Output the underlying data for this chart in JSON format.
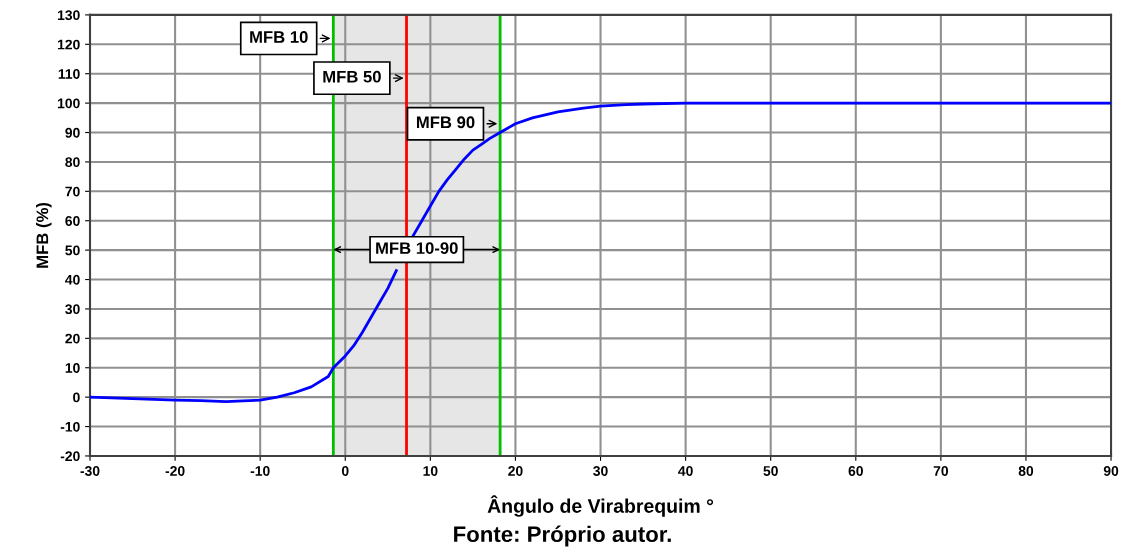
{
  "chart_data": {
    "type": "line",
    "xlabel": "Ângulo de Virabrequim °",
    "ylabel": "MFB (%)",
    "x": [
      -30,
      -25,
      -20,
      -17,
      -14,
      -12,
      -10,
      -8,
      -6,
      -4,
      -2,
      -1.4,
      0,
      1,
      2,
      3,
      4,
      5,
      6,
      7.2,
      8,
      9,
      10,
      11,
      12,
      13,
      14,
      15,
      16,
      17,
      18.2,
      20,
      22,
      25,
      28,
      30,
      33,
      35,
      40,
      50,
      60,
      70,
      80,
      90
    ],
    "series": [
      {
        "color": "#0000ff",
        "values": [
          0,
          -0.5,
          -1,
          -1.2,
          -1.5,
          -1.3,
          -1,
          0,
          1.5,
          3.5,
          7,
          10,
          14,
          17.5,
          22,
          27,
          32,
          37,
          43,
          null,
          55,
          60,
          65,
          70,
          74,
          77.5,
          81,
          84,
          86,
          88,
          90,
          93,
          95,
          97,
          98.3,
          99,
          99.5,
          99.7,
          100,
          100,
          100,
          100,
          100,
          100
        ]
      }
    ],
    "xlim": [
      -30,
      90
    ],
    "xticks": [
      -30,
      -20,
      -10,
      0,
      10,
      20,
      30,
      40,
      50,
      60,
      70,
      80,
      90
    ],
    "ylim": [
      -20,
      130
    ],
    "yticks": [
      -20,
      -10,
      0,
      10,
      20,
      30,
      40,
      50,
      60,
      70,
      80,
      90,
      100,
      110,
      120,
      130
    ],
    "grid": true,
    "marker": "none",
    "line_style": "solid",
    "legend": false,
    "ref_lines": [
      {
        "axis": "x",
        "value": -1.4,
        "color": "#00c000"
      },
      {
        "axis": "x",
        "value": 7.2,
        "color": "#ff0000"
      },
      {
        "axis": "x",
        "value": 18.2,
        "color": "#00c000"
      }
    ],
    "bands": [
      {
        "axis": "x",
        "from": -1.4,
        "to": 18.2,
        "color": "#e6e6e6",
        "label": "MFB 10-90"
      }
    ],
    "annotations": [
      {
        "text": "MFB 10",
        "x": -1.4,
        "y": 122
      },
      {
        "text": "MFB 50",
        "x": 7.2,
        "y": 108.5
      },
      {
        "text": "MFB 90",
        "x": 18.2,
        "y": 93
      },
      "Fonte: Próprio autor."
    ]
  }
}
